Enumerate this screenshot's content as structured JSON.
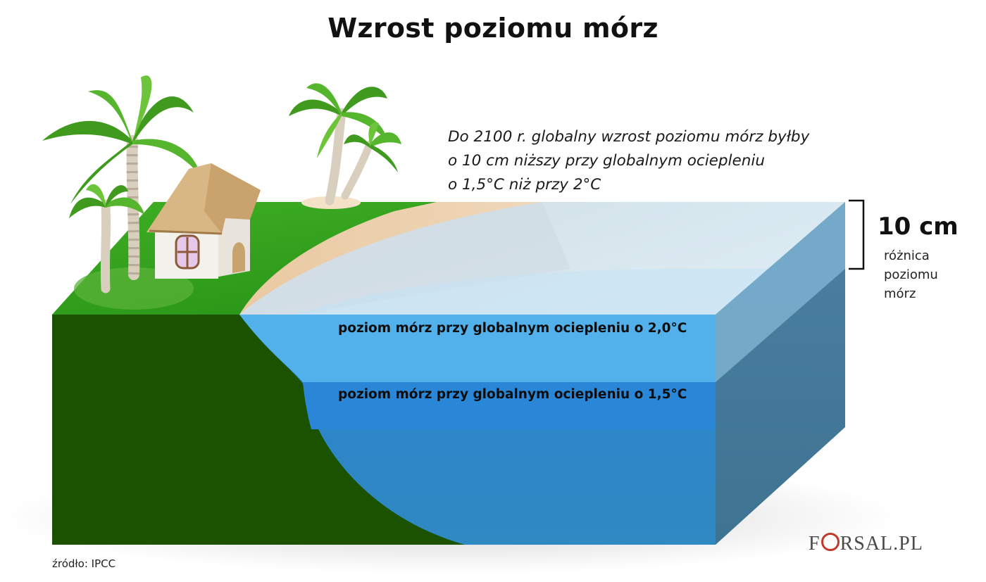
{
  "title": "Wzrost poziomu mórz",
  "description": [
    "Do 2100 r. globalny wzrost poziomu mórz byłby",
    "o 10 cm niższy przy globalnym ociepleniu",
    "o 1,5°C niż przy 2°C"
  ],
  "difference": {
    "value": "10 cm",
    "label": [
      "różnica",
      "poziomu",
      "mórz"
    ]
  },
  "levels": {
    "warming_2_0": "poziom mórz przy globalnym ociepleniu o 2,0°C",
    "warming_1_5": "poziom mórz przy globalnym ociepleniu o 1,5°C"
  },
  "source": "źródło: IPCC",
  "logo": {
    "left": "F",
    "right": "RSAL.PL"
  },
  "colors": {
    "land": "#1a5200",
    "grass": "#2f9a1c",
    "sand": "#f2dcc0",
    "water_top": "#d6ecfa",
    "water_2_0": "#52b0ea",
    "water_1_5": "#2a86d6",
    "water_deep": "#2e88c4",
    "water_side": "#3f7696",
    "logo_accent": "#c0392b"
  },
  "icons": [
    "palm-tree-icon",
    "hut-icon"
  ]
}
